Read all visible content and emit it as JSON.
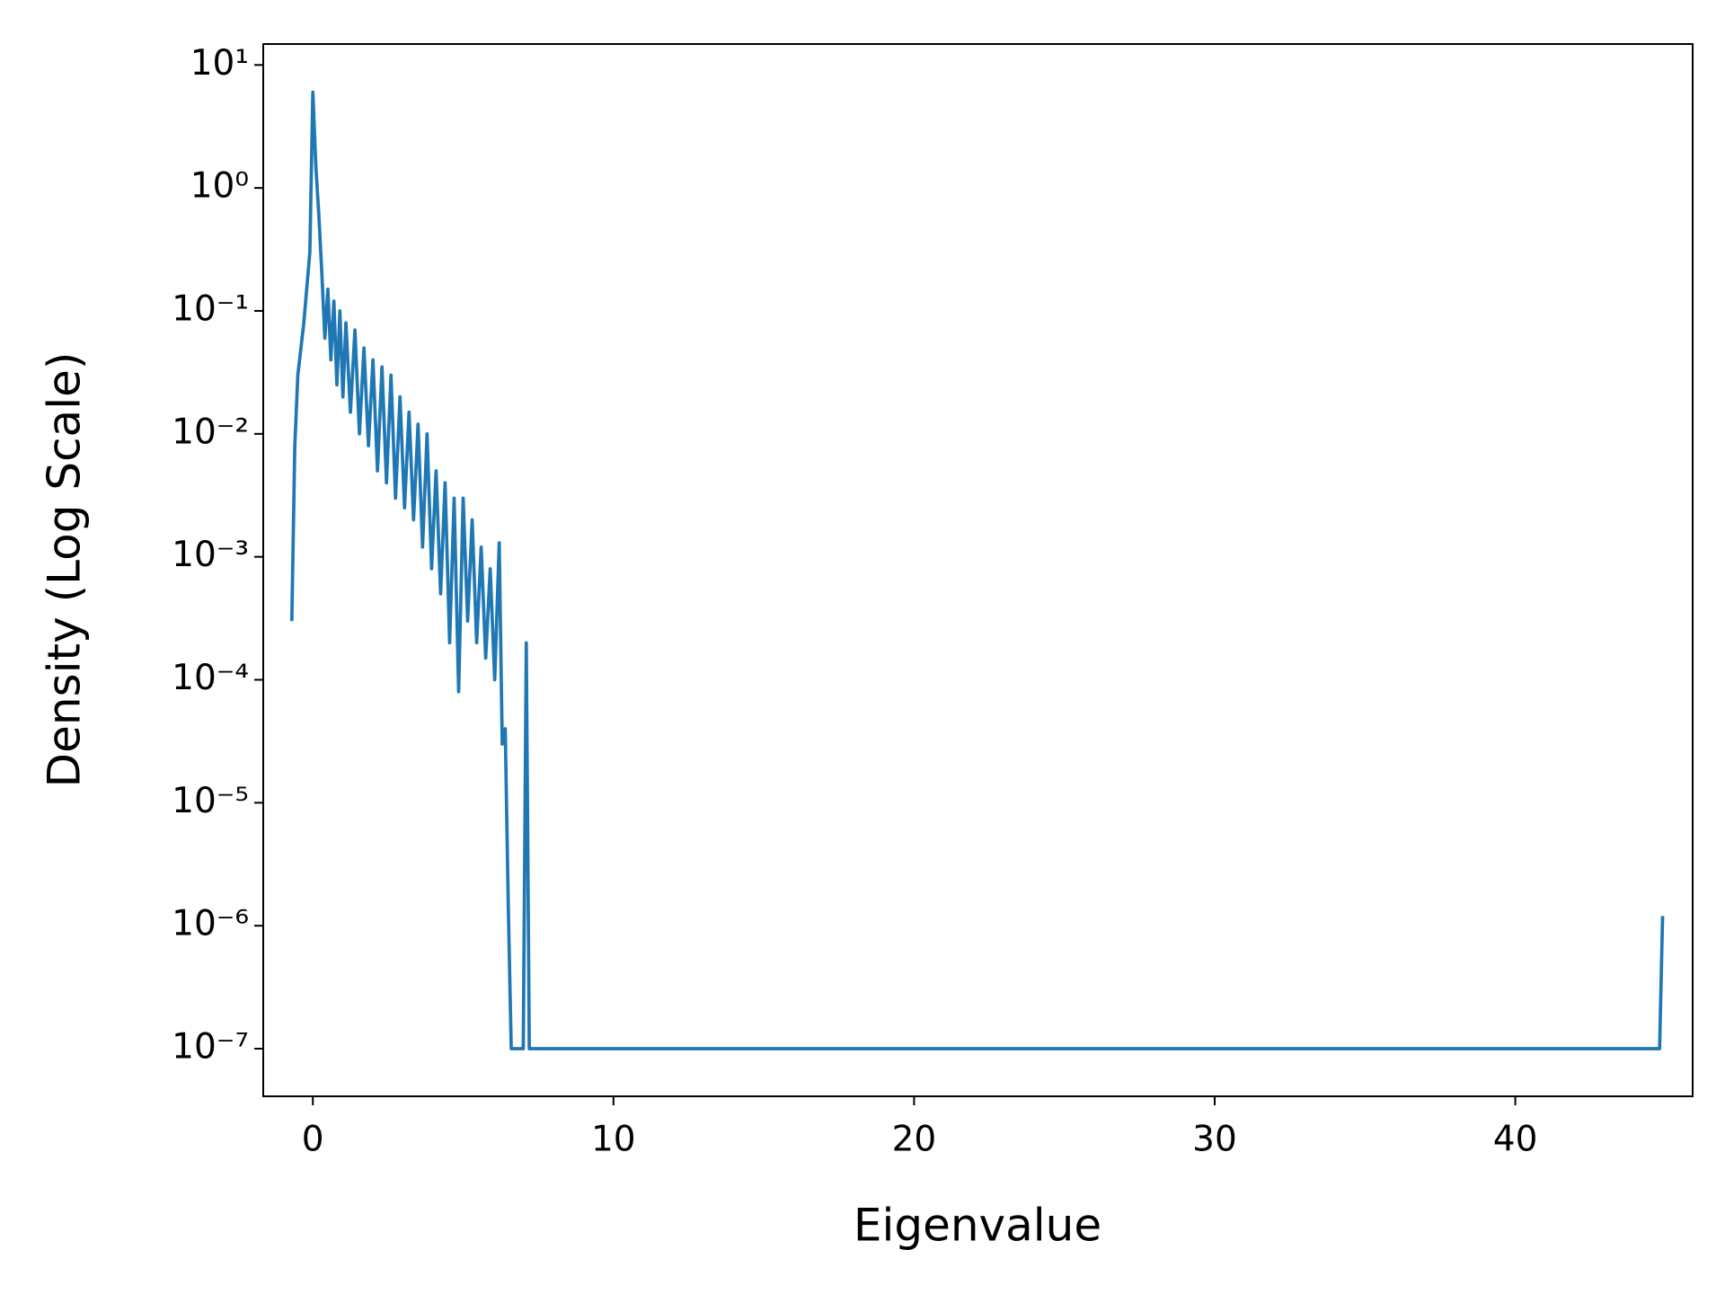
{
  "chart_data": {
    "type": "line",
    "xlabel": "Eigenvalue",
    "ylabel": "Density (Log Scale)",
    "log_y": true,
    "grid": false,
    "x": [
      -0.7,
      -0.6,
      -0.5,
      -0.3,
      -0.1,
      0,
      0.1,
      0.2,
      0.3,
      0.4,
      0.5,
      0.6,
      0.7,
      0.8,
      0.9,
      1.0,
      1.1,
      1.25,
      1.4,
      1.55,
      1.7,
      1.85,
      2.0,
      2.15,
      2.3,
      2.45,
      2.6,
      2.75,
      2.9,
      3.05,
      3.2,
      3.35,
      3.5,
      3.65,
      3.8,
      3.95,
      4.1,
      4.25,
      4.4,
      4.55,
      4.7,
      4.85,
      5.0,
      5.15,
      5.3,
      5.45,
      5.6,
      5.75,
      5.9,
      6.05,
      6.2,
      6.3,
      6.4,
      6.5,
      6.6,
      7.0,
      7.1,
      7.2,
      44.8,
      44.9
    ],
    "series": [
      {
        "name": "Density",
        "color": "#1f77b4",
        "values": [
          0.0003,
          0.008,
          0.03,
          0.08,
          0.3,
          6,
          1.5,
          0.6,
          0.2,
          0.06,
          0.15,
          0.04,
          0.12,
          0.025,
          0.1,
          0.02,
          0.08,
          0.015,
          0.07,
          0.01,
          0.05,
          0.008,
          0.04,
          0.005,
          0.035,
          0.004,
          0.03,
          0.003,
          0.02,
          0.0025,
          0.015,
          0.002,
          0.012,
          0.0012,
          0.01,
          0.0008,
          0.005,
          0.0005,
          0.004,
          0.0002,
          0.003,
          8e-05,
          0.003,
          0.0003,
          0.002,
          0.0002,
          0.0012,
          0.00015,
          0.0008,
          0.0001,
          0.0013,
          3e-05,
          4e-05,
          1.5e-06,
          1e-07,
          1e-07,
          0.0002,
          1e-07,
          1e-07,
          1.2e-06
        ]
      }
    ],
    "xlim": [
      -1.65,
      45.9
    ],
    "xticks": [
      0,
      10,
      20,
      30,
      40
    ],
    "ylim": [
      4.1e-08,
      14.8
    ],
    "yticks": [
      {
        "value": 10,
        "label": "10¹"
      },
      {
        "value": 1,
        "label": "10⁰"
      },
      {
        "value": 0.1,
        "label": "10⁻¹"
      },
      {
        "value": 0.01,
        "label": "10⁻²"
      },
      {
        "value": 0.001,
        "label": "10⁻³"
      },
      {
        "value": 0.0001,
        "label": "10⁻⁴"
      },
      {
        "value": 1e-05,
        "label": "10⁻⁵"
      },
      {
        "value": 1e-06,
        "label": "10⁻⁶"
      },
      {
        "value": 1e-07,
        "label": "10⁻⁷"
      }
    ]
  }
}
